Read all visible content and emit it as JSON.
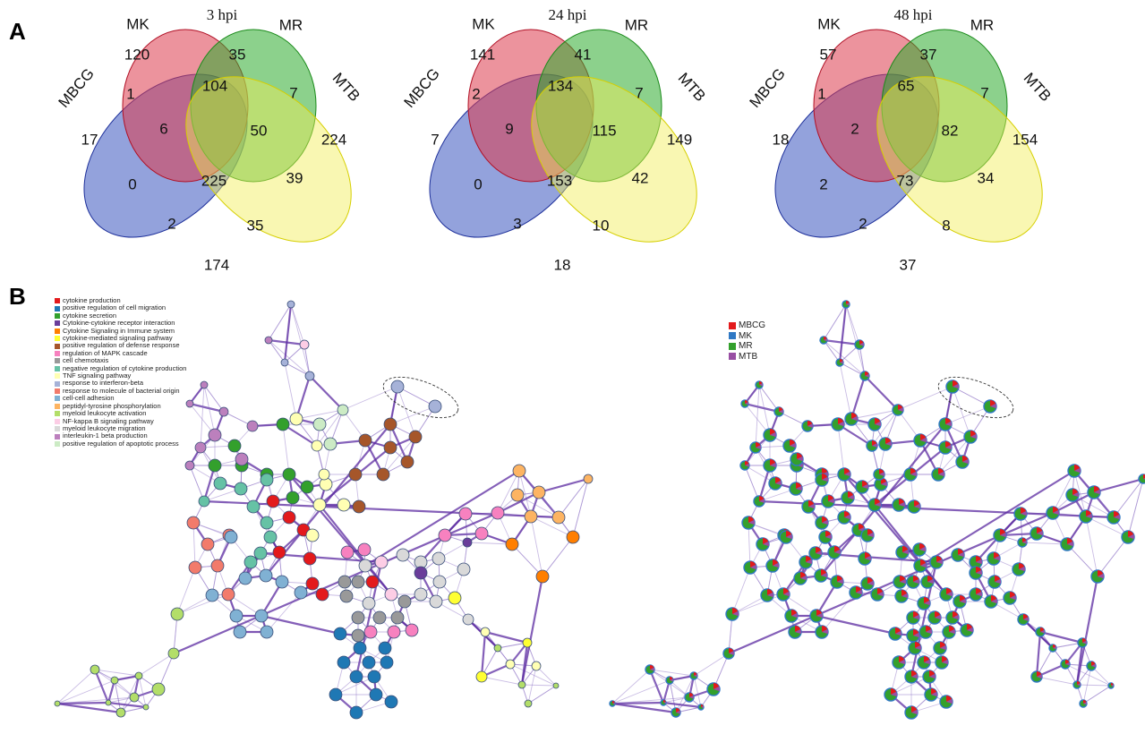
{
  "panel_a": {
    "letter": "A",
    "venns": [
      {
        "title": "3 hpi",
        "sets": {
          "mbcg": "MBCG",
          "mk": "MK",
          "mr": "MR",
          "mtb": "MTB"
        },
        "regions": {
          "mk_only": "120",
          "mr_only": "35",
          "mbcg_only": "17",
          "mtb_only": "224",
          "mbcg_mk": "1",
          "mk_mr": "104",
          "mr_mtb": "7",
          "mbcg_mk_mr": "6",
          "mk_mr_mtb": "50",
          "mbcg_mr": "0",
          "all": "225",
          "mbcg_mk_mtb": "39",
          "mbcg_mr_mtb": "2",
          "mk_mtb": "35",
          "mbcg_mtb": "174"
        }
      },
      {
        "title": "24 hpi",
        "sets": {
          "mbcg": "MBCG",
          "mk": "MK",
          "mr": "MR",
          "mtb": "MTB"
        },
        "regions": {
          "mk_only": "141",
          "mr_only": "41",
          "mbcg_only": "7",
          "mtb_only": "149",
          "mbcg_mk": "2",
          "mk_mr": "134",
          "mr_mtb": "7",
          "mbcg_mk_mr": "9",
          "mk_mr_mtb": "115",
          "mbcg_mr": "0",
          "all": "153",
          "mbcg_mk_mtb": "42",
          "mbcg_mr_mtb": "3",
          "mk_mtb": "10",
          "mbcg_mtb": "18"
        }
      },
      {
        "title": "48 hpi",
        "sets": {
          "mbcg": "MBCG",
          "mk": "MK",
          "mr": "MR",
          "mtb": "MTB"
        },
        "regions": {
          "mk_only": "57",
          "mr_only": "37",
          "mbcg_only": "18",
          "mtb_only": "154",
          "mbcg_mk": "1",
          "mk_mr": "65",
          "mr_mtb": "7",
          "mbcg_mk_mr": "2",
          "mk_mr_mtb": "82",
          "mbcg_mr": "2",
          "all": "73",
          "mbcg_mk_mtb": "34",
          "mbcg_mr_mtb": "2",
          "mk_mtb": "8",
          "mbcg_mtb": "37"
        }
      }
    ],
    "colors": {
      "mbcg": "#3a55c0",
      "mk": "#dc3a4c",
      "mr": "#2eab2e",
      "mtb": "#f2ee55"
    }
  },
  "panel_b": {
    "letter": "B",
    "legend_left": [
      {
        "label": "cytokine production",
        "color": "#e31a1c"
      },
      {
        "label": "positive regulation of cell migration",
        "color": "#1f78b4"
      },
      {
        "label": "cytokine secretion",
        "color": "#33a02c"
      },
      {
        "label": "Cytokine-cytokine receptor interaction",
        "color": "#6a3d9a"
      },
      {
        "label": "Cytokine Signaling in Immune system",
        "color": "#ff7f00"
      },
      {
        "label": "cytokine-mediated signaling pathway",
        "color": "#ffff33"
      },
      {
        "label": "positive regulation of defense response",
        "color": "#a6562a"
      },
      {
        "label": "regulation of MAPK cascade",
        "color": "#f781bf"
      },
      {
        "label": "cell chemotaxis",
        "color": "#999999"
      },
      {
        "label": "negative regulation of cytokine production",
        "color": "#66c2a5"
      },
      {
        "label": "TNF signaling pathway",
        "color": "#ffffb3"
      },
      {
        "label": "response to interferon-beta",
        "color": "#a6b2d8"
      },
      {
        "label": "response to molecule of bacterial origin",
        "color": "#f27b6b"
      },
      {
        "label": "cell-cell adhesion",
        "color": "#80b1d3"
      },
      {
        "label": "peptidyl-tyrosine phosphorylation",
        "color": "#fdb462"
      },
      {
        "label": "myeloid leukocyte activation",
        "color": "#b3de69"
      },
      {
        "label": "NF-kappa B signaling pathway",
        "color": "#fccde5"
      },
      {
        "label": "myeloid leukocyte migration",
        "color": "#d9d9d9"
      },
      {
        "label": "interleukin-1 beta production",
        "color": "#bc80bd"
      },
      {
        "label": "positive regulation of apoptotic process",
        "color": "#ccebc5"
      }
    ],
    "legend_right": [
      {
        "label": "MBCG",
        "color": "#e31a1c"
      },
      {
        "label": "MK",
        "color": "#2f78c4"
      },
      {
        "label": "MR",
        "color": "#33a02c"
      },
      {
        "label": "MTB",
        "color": "#984ea3"
      }
    ]
  }
}
